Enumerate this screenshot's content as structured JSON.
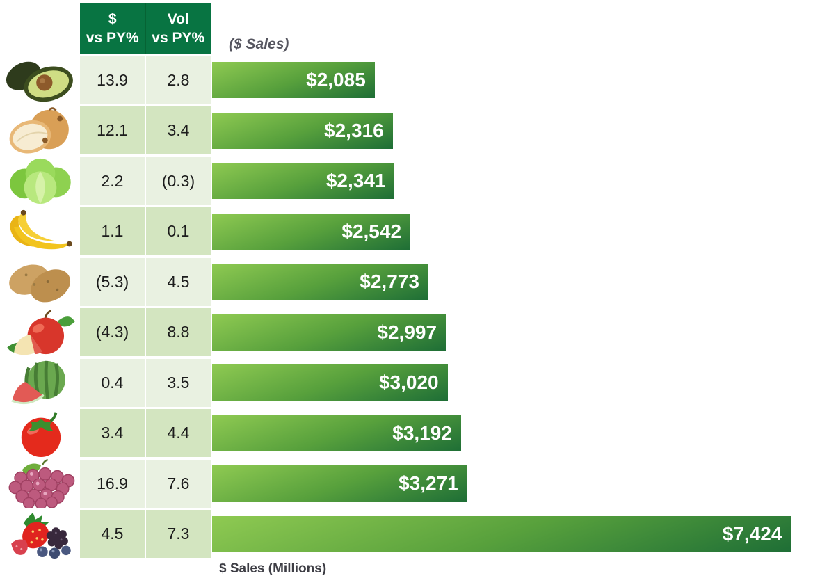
{
  "header": {
    "col1_line1": "$",
    "col1_line2": "vs PY%",
    "col2_line1": "Vol",
    "col2_line2": "vs PY%",
    "bar_caption": "($ Sales)"
  },
  "footer": {
    "axis_label": "$ Sales (Millions)"
  },
  "colors": {
    "header_green": "#087442",
    "row_light": "#e9f1e1",
    "row_dark": "#d3e5c0",
    "bar_gradient_start": "#8fca52",
    "bar_gradient_end": "#1e6e36",
    "bar_text": "#ffffff",
    "caption_gray": "#55555f",
    "axis_label_gray": "#3d3d44"
  },
  "chart_data": {
    "type": "bar",
    "orientation": "horizontal",
    "title": "($ Sales)",
    "xlabel": "$ Sales (Millions)",
    "xmax": 8000,
    "grid": false,
    "legend": false,
    "negative_format": "parentheses",
    "categories": [
      "Avocado",
      "Onion",
      "Lettuce",
      "Banana",
      "Potato",
      "Apple",
      "Watermelon",
      "Tomato",
      "Grapes",
      "Berries"
    ],
    "series": [
      {
        "name": "$ vs PY%",
        "values": [
          13.9,
          12.1,
          2.2,
          1.1,
          -5.3,
          -4.3,
          0.4,
          3.4,
          16.9,
          4.5
        ]
      },
      {
        "name": "Vol vs PY%",
        "values": [
          2.8,
          3.4,
          -0.3,
          0.1,
          4.5,
          8.8,
          3.5,
          4.4,
          7.6,
          7.3
        ]
      },
      {
        "name": "$ Sales (Millions)",
        "values": [
          2085,
          2316,
          2341,
          2542,
          2773,
          2997,
          3020,
          3192,
          3271,
          7424
        ]
      }
    ]
  },
  "rows": [
    {
      "item": "avocado",
      "icon": "avocado-icon",
      "dollar_vs_py": "13.9",
      "vol_vs_py": "2.8",
      "sales": 2085,
      "sales_label": "$2,085"
    },
    {
      "item": "onion",
      "icon": "onion-icon",
      "dollar_vs_py": "12.1",
      "vol_vs_py": "3.4",
      "sales": 2316,
      "sales_label": "$2,316"
    },
    {
      "item": "lettuce",
      "icon": "lettuce-icon",
      "dollar_vs_py": "2.2",
      "vol_vs_py": "(0.3)",
      "sales": 2341,
      "sales_label": "$2,341"
    },
    {
      "item": "banana",
      "icon": "banana-icon",
      "dollar_vs_py": "1.1",
      "vol_vs_py": "0.1",
      "sales": 2542,
      "sales_label": "$2,542"
    },
    {
      "item": "potato",
      "icon": "potato-icon",
      "dollar_vs_py": "(5.3)",
      "vol_vs_py": "4.5",
      "sales": 2773,
      "sales_label": "$2,773"
    },
    {
      "item": "apple",
      "icon": "apple-icon",
      "dollar_vs_py": "(4.3)",
      "vol_vs_py": "8.8",
      "sales": 2997,
      "sales_label": "$2,997"
    },
    {
      "item": "watermelon",
      "icon": "watermelon-icon",
      "dollar_vs_py": "0.4",
      "vol_vs_py": "3.5",
      "sales": 3020,
      "sales_label": "$3,020"
    },
    {
      "item": "tomato",
      "icon": "tomato-icon",
      "dollar_vs_py": "3.4",
      "vol_vs_py": "4.4",
      "sales": 3192,
      "sales_label": "$3,192"
    },
    {
      "item": "grapes",
      "icon": "grapes-icon",
      "dollar_vs_py": "16.9",
      "vol_vs_py": "7.6",
      "sales": 3271,
      "sales_label": "$3,271"
    },
    {
      "item": "berries",
      "icon": "berries-icon",
      "dollar_vs_py": "4.5",
      "vol_vs_py": "7.3",
      "sales": 7424,
      "sales_label": "$7,424"
    }
  ]
}
